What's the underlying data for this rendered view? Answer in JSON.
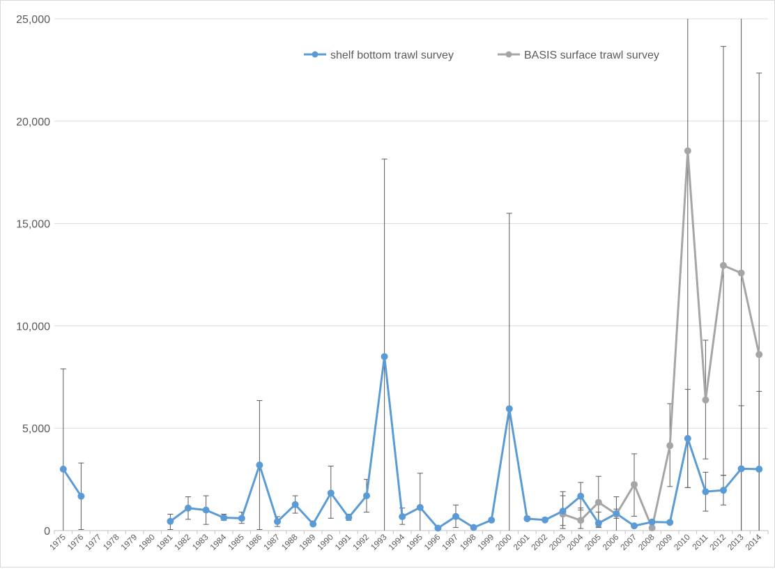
{
  "chart_data": {
    "type": "line",
    "title": "",
    "xlabel": "",
    "ylabel": "",
    "ylim": [
      0,
      25000
    ],
    "yticks": [
      0,
      5000,
      10000,
      15000,
      20000,
      25000
    ],
    "ytick_labels": [
      "0",
      "5,000",
      "10,000",
      "15,000",
      "20,000",
      "25,000"
    ],
    "grid": "horizontal",
    "legend_position": "top-center",
    "categories": [
      "1975",
      "1976",
      "1977",
      "1978",
      "1979",
      "1980",
      "1981",
      "1982",
      "1983",
      "1984",
      "1985",
      "1986",
      "1987",
      "1988",
      "1989",
      "1990",
      "1991",
      "1992",
      "1993",
      "1994",
      "1995",
      "1996",
      "1997",
      "1998",
      "1999",
      "2000",
      "2001",
      "2002",
      "2003",
      "2004",
      "2005",
      "2006",
      "2007",
      "2008",
      "2009",
      "2010",
      "2011",
      "2012",
      "2013",
      "2014"
    ],
    "series": [
      {
        "name": "shelf bottom trawl survey",
        "color": "#5b9bd5",
        "values": [
          3000,
          1680,
          null,
          null,
          null,
          null,
          450,
          1100,
          1000,
          630,
          600,
          3200,
          440,
          1270,
          320,
          1830,
          640,
          1700,
          8500,
          680,
          1130,
          120,
          690,
          150,
          510,
          5950,
          580,
          520,
          950,
          1680,
          360,
          830,
          230,
          420,
          400,
          4500,
          1900,
          1970,
          3020,
          3000
        ],
        "error_upper": [
          7900,
          3300,
          null,
          null,
          null,
          null,
          800,
          1650,
          1700,
          800,
          900,
          6350,
          680,
          1700,
          470,
          3150,
          800,
          2500,
          18150,
          1100,
          2800,
          130,
          1250,
          160,
          600,
          15500,
          700,
          620,
          1900,
          2350,
          900,
          1050,
          250,
          500,
          500,
          6900,
          2850,
          2700,
          6100,
          6800
        ],
        "error_lower": [
          0,
          50,
          null,
          null,
          null,
          null,
          50,
          550,
          300,
          500,
          350,
          50,
          200,
          850,
          250,
          600,
          500,
          900,
          0,
          300,
          0,
          100,
          150,
          120,
          450,
          0,
          500,
          450,
          250,
          1000,
          200,
          600,
          210,
          380,
          320,
          2100,
          950,
          1250,
          0,
          0
        ]
      },
      {
        "name": "BASIS surface trawl survey",
        "color": "#a5a5a5",
        "values": [
          null,
          null,
          null,
          null,
          null,
          null,
          null,
          null,
          null,
          null,
          null,
          null,
          null,
          null,
          null,
          null,
          null,
          null,
          null,
          null,
          null,
          null,
          null,
          null,
          null,
          null,
          null,
          null,
          800,
          500,
          1380,
          800,
          2250,
          130,
          4150,
          18550,
          6380,
          12950,
          12580,
          8600
        ],
        "error_upper": [
          null,
          null,
          null,
          null,
          null,
          null,
          null,
          null,
          null,
          null,
          null,
          null,
          null,
          null,
          null,
          null,
          null,
          null,
          null,
          null,
          null,
          null,
          null,
          null,
          null,
          null,
          null,
          null,
          1700,
          1100,
          2650,
          1650,
          3750,
          150,
          6200,
          25000,
          9300,
          23650,
          25000,
          22350
        ],
        "error_lower": [
          null,
          null,
          null,
          null,
          null,
          null,
          null,
          null,
          null,
          null,
          null,
          null,
          null,
          null,
          null,
          null,
          null,
          null,
          null,
          null,
          null,
          null,
          null,
          null,
          null,
          null,
          null,
          null,
          100,
          100,
          150,
          0,
          700,
          100,
          2150,
          2100,
          3500,
          2700,
          0,
          0
        ]
      }
    ]
  }
}
